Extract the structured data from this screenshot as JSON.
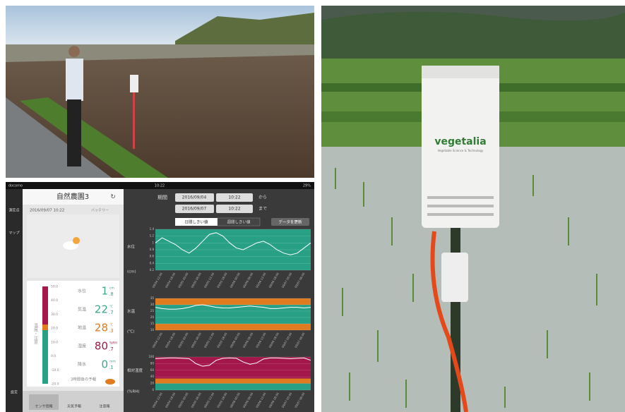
{
  "device_label": {
    "brand": "vegetalia",
    "tagline": "Vegetable Science & Technology"
  },
  "app": {
    "status": {
      "carrier": "docomo",
      "time": "10:22",
      "battery": "29%"
    },
    "sidebar": [
      "測定点",
      "マップ",
      "設定"
    ],
    "station": "自然農園3",
    "timestamp": "2016/09/07 10:22",
    "battery_label": "バッテリー",
    "gauge_label": "温度・注意",
    "gauge_ticks": [
      "50.0",
      "40.0",
      "30.0",
      "20.0",
      "10.0",
      "0.0",
      "-10.0",
      "-20.0"
    ],
    "readings": [
      {
        "label": "水位",
        "value": "1",
        "fraction": ".8",
        "unit": "cm",
        "color": "#3aa88c"
      },
      {
        "label": "気温",
        "value": "22",
        "fraction": ".7",
        "unit": "℃",
        "color": "#3aa88c"
      },
      {
        "label": "地温",
        "value": "28",
        "fraction": ".3",
        "unit": "℃",
        "color": "#e07b1f"
      },
      {
        "label": "湿度",
        "value": "80",
        "fraction": ".7",
        "unit": "%RH",
        "color": "#a3174a"
      },
      {
        "label": "降水",
        "value": "0",
        "fraction": ".1",
        "unit": "mm",
        "color": "#3aa88c"
      }
    ],
    "forecast": "3時間後の予報",
    "tabs": [
      "センサ情報",
      "天気予報",
      "注意報"
    ],
    "period": {
      "label": "期間",
      "from_date": "2016/09/04",
      "from_time": "10:22",
      "from_suffix": "から",
      "to_date": "2016/09/07",
      "to_time": "10:22",
      "to_suffix": "まで"
    },
    "toggle": [
      "日間しきい値",
      "週間しきい値"
    ],
    "update_button": "データを更新",
    "x_labels": [
      "09/04 12:00",
      "09/04 18:00",
      "09/05 00:00",
      "09/05 06:00",
      "09/05 12:00",
      "09/05 18:00",
      "09/06 00:00",
      "09/06 06:00",
      "09/06 12:00",
      "09/06 18:00",
      "09/07 00:00",
      "09/07 06:00"
    ],
    "charts": [
      {
        "label": "水位",
        "unit": "(cm)",
        "ylim": [
          0.2,
          1.4
        ],
        "yticks": [
          0.2,
          0.4,
          0.6,
          0.8,
          1,
          1.2,
          1.4
        ],
        "values": [
          1.0,
          1.15,
          1.05,
          0.95,
          0.8,
          0.7,
          0.85,
          1.05,
          1.25,
          1.3,
          1.2,
          1.0,
          0.85,
          0.8,
          0.9,
          1.0,
          1.05,
          0.95,
          0.8,
          0.7,
          0.65,
          0.7,
          0.85,
          1.0
        ]
      },
      {
        "label": "水温",
        "unit": "(℃)",
        "ylim": [
          10,
          35
        ],
        "yticks": [
          10,
          15,
          20,
          25,
          30,
          35
        ],
        "values": [
          28,
          27,
          26.5,
          26.5,
          27,
          28,
          29.5,
          30,
          29,
          28,
          27.5,
          27.5,
          28,
          28.5,
          29,
          28.5,
          28,
          27,
          27,
          27.5,
          28,
          28,
          27.5,
          28
        ]
      },
      {
        "label": "相対湿度",
        "unit": "(%RH)",
        "ylim": [
          0,
          100
        ],
        "yticks": [
          0,
          20,
          40,
          60,
          80,
          100
        ],
        "values": [
          95,
          96,
          97,
          97,
          96,
          95,
          80,
          72,
          75,
          90,
          96,
          97,
          96,
          85,
          78,
          82,
          94,
          97,
          97,
          96,
          95,
          96,
          97,
          90
        ]
      }
    ]
  }
}
